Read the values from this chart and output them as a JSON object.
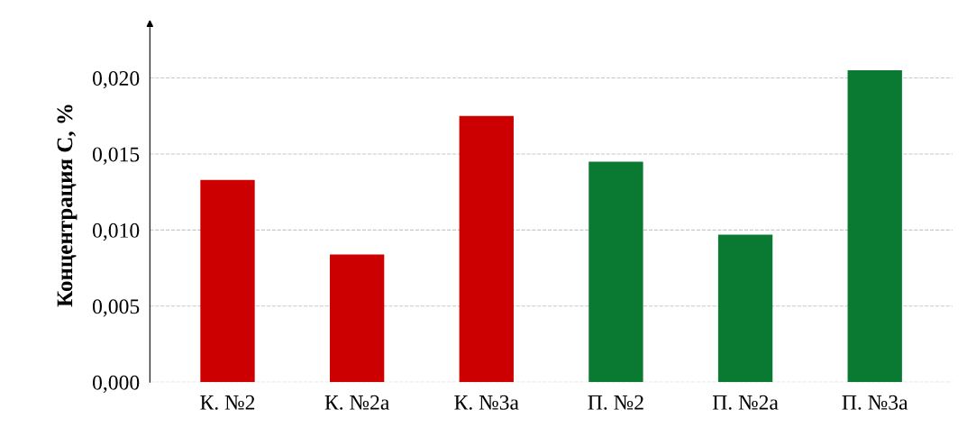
{
  "chart_data": {
    "type": "bar",
    "ylabel": "Концентрация C, %",
    "categories": [
      "К. №2",
      "К. №2а",
      "К. №3а",
      "П. №2",
      "П. №2а",
      "П. №3а"
    ],
    "values": [
      0.0133,
      0.0084,
      0.0175,
      0.0145,
      0.0097,
      0.0205
    ],
    "colors": [
      "#cc0000",
      "#cc0000",
      "#cc0000",
      "#0a7a32",
      "#0a7a32",
      "#0a7a32"
    ],
    "ylim": [
      0,
      0.0233
    ],
    "yticks": [
      {
        "value": 0,
        "label": "0,000"
      },
      {
        "value": 0.005,
        "label": "0,005"
      },
      {
        "value": 0.01,
        "label": "0,010"
      },
      {
        "value": 0.015,
        "label": "0,015"
      },
      {
        "value": 0.02,
        "label": "0,020"
      }
    ],
    "grid": "y"
  }
}
